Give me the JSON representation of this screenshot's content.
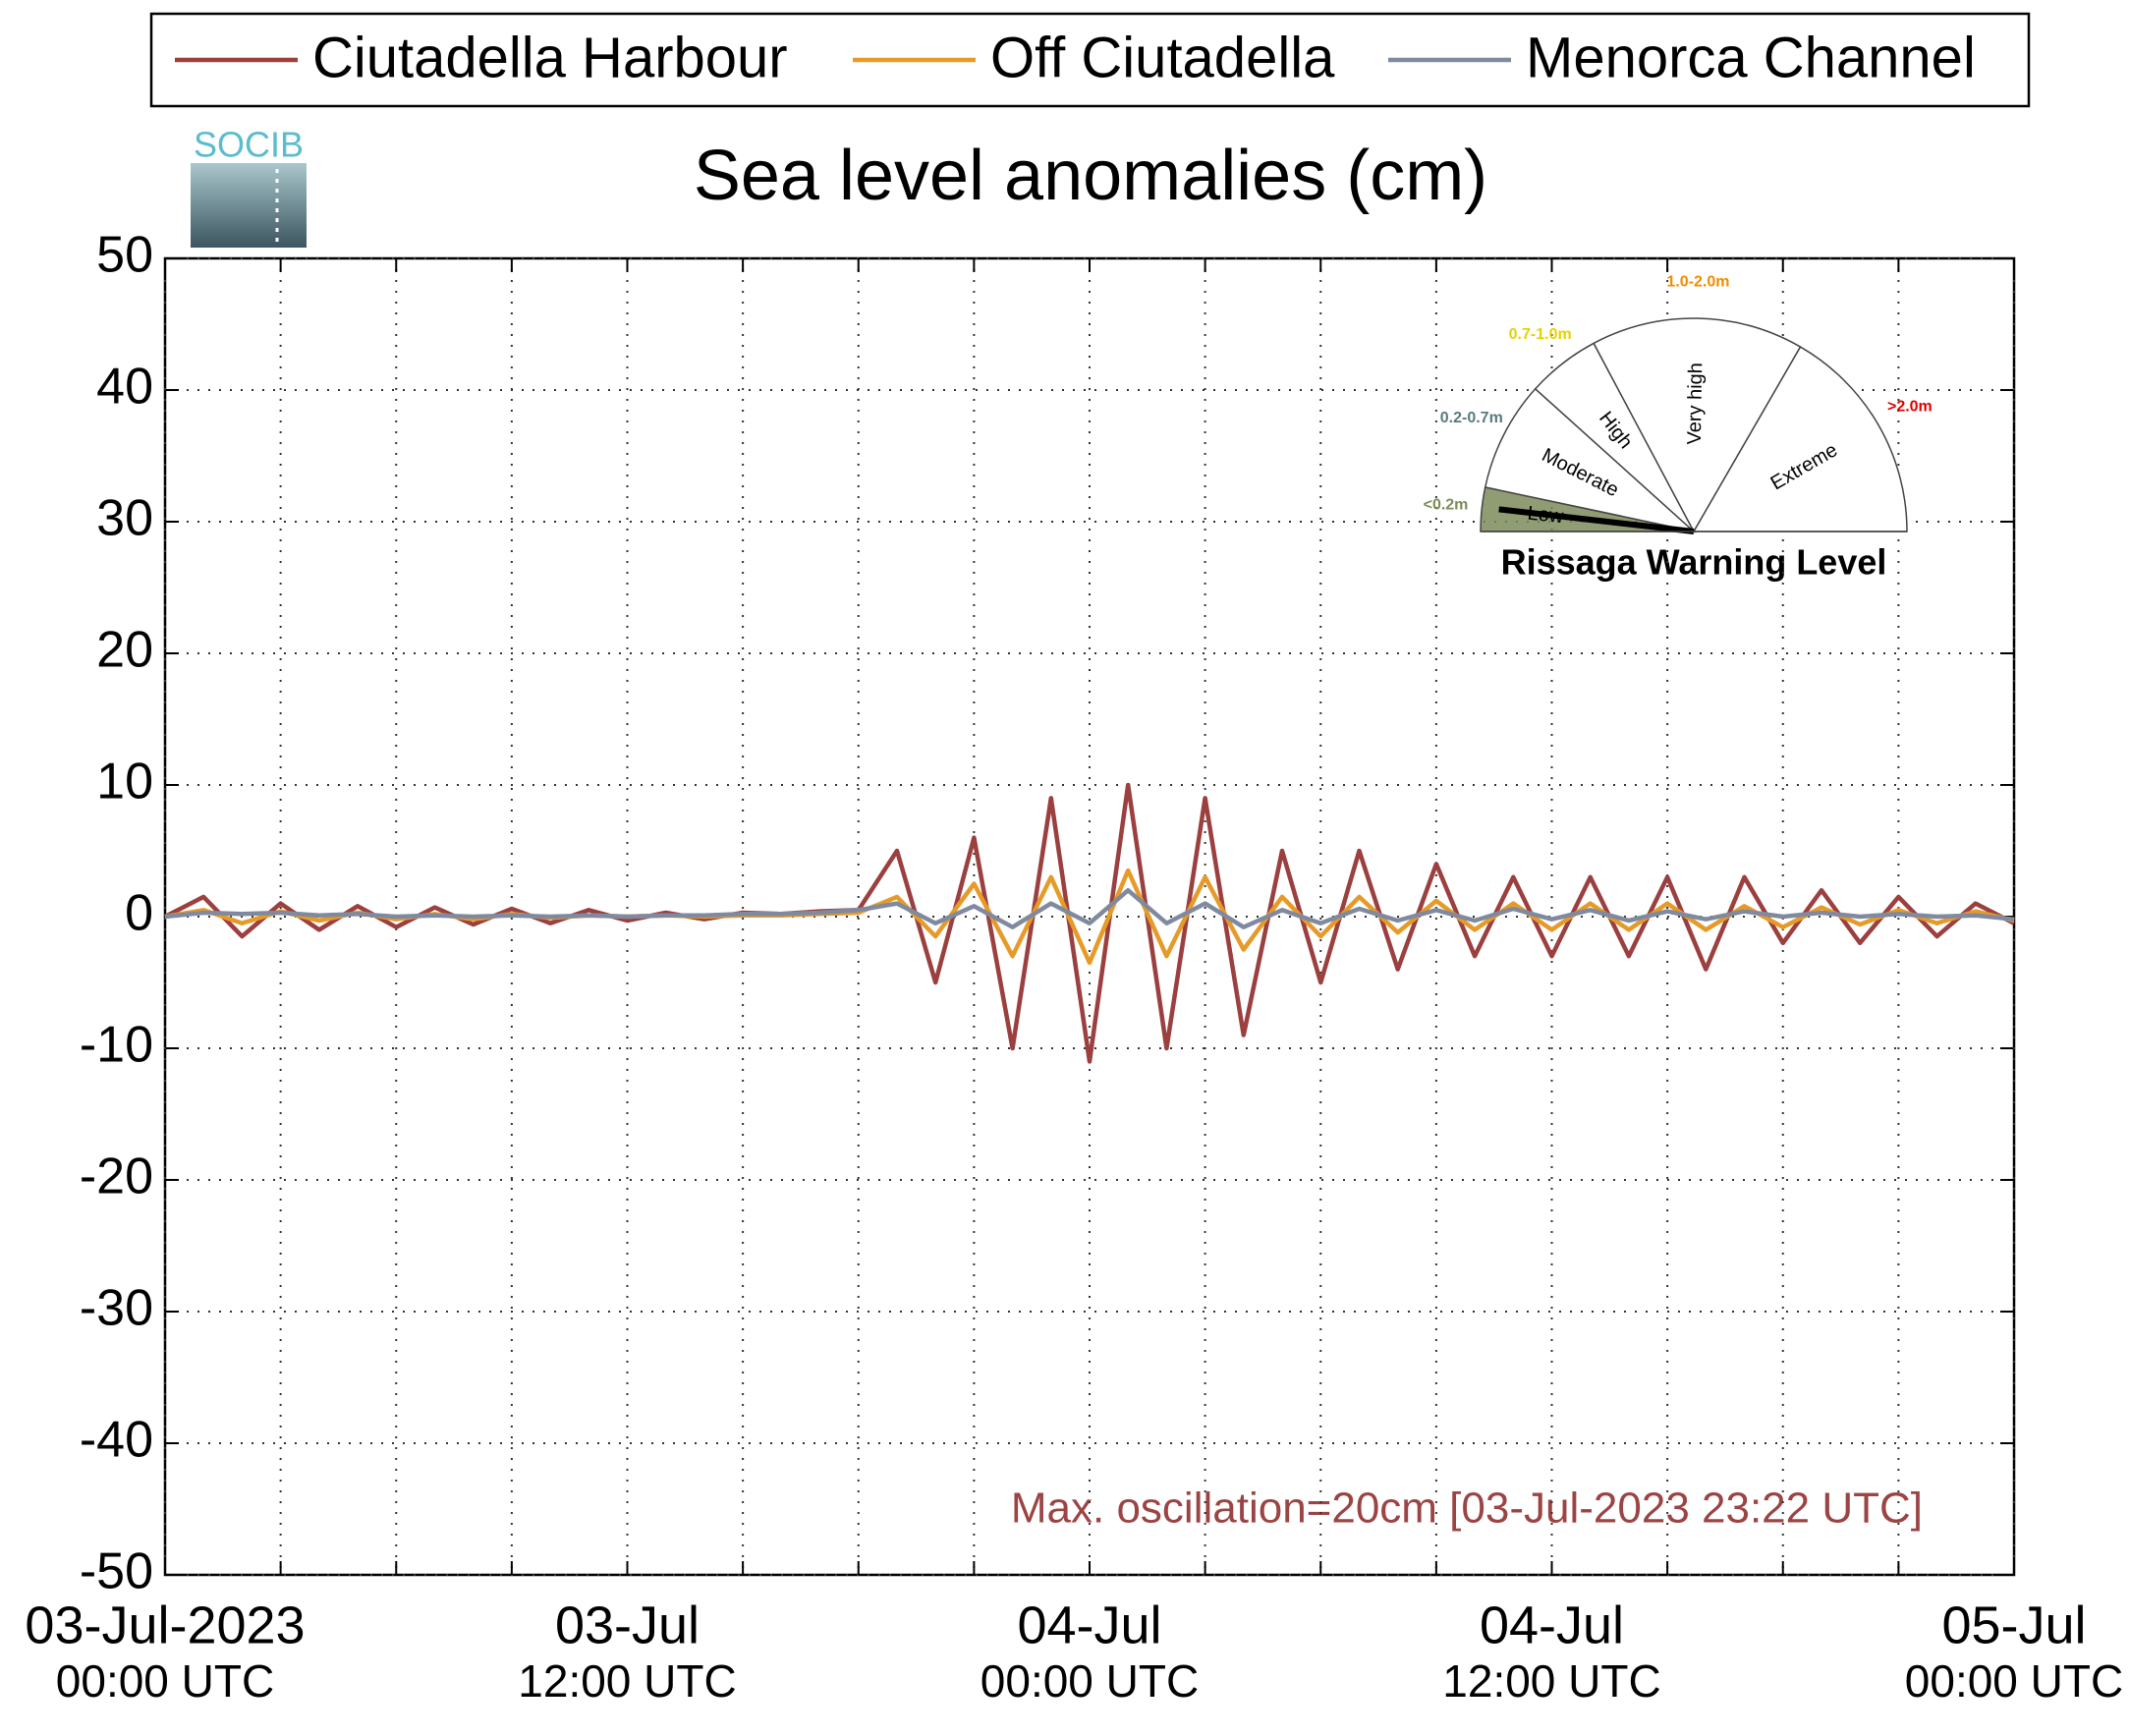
{
  "chart_data": {
    "type": "line",
    "title": "Sea level anomalies (cm)",
    "logo": "SOCIB",
    "annotation": "Max. oscillation=20cm [03-Jul-2023 23:22 UTC]",
    "legend": "top",
    "grid": true,
    "xlim": [
      "2023-07-03T00:00",
      "2023-07-05T00:00"
    ],
    "xticks": [
      {
        "value": "2023-07-03T00:00",
        "label": [
          "03-Jul-2023",
          "00:00 UTC"
        ]
      },
      {
        "value": "2023-07-03T03:00",
        "label": null
      },
      {
        "value": "2023-07-03T06:00",
        "label": null
      },
      {
        "value": "2023-07-03T09:00",
        "label": null
      },
      {
        "value": "2023-07-03T12:00",
        "label": [
          "03-Jul",
          "12:00 UTC"
        ]
      },
      {
        "value": "2023-07-03T15:00",
        "label": null
      },
      {
        "value": "2023-07-03T18:00",
        "label": null
      },
      {
        "value": "2023-07-03T21:00",
        "label": null
      },
      {
        "value": "2023-07-04T00:00",
        "label": [
          "04-Jul",
          "00:00 UTC"
        ]
      },
      {
        "value": "2023-07-04T03:00",
        "label": null
      },
      {
        "value": "2023-07-04T06:00",
        "label": null
      },
      {
        "value": "2023-07-04T09:00",
        "label": null
      },
      {
        "value": "2023-07-04T12:00",
        "label": [
          "04-Jul",
          "12:00 UTC"
        ]
      },
      {
        "value": "2023-07-04T15:00",
        "label": null
      },
      {
        "value": "2023-07-04T18:00",
        "label": null
      },
      {
        "value": "2023-07-04T21:00",
        "label": null
      },
      {
        "value": "2023-07-05T00:00",
        "label": [
          "05-Jul",
          "00:00 UTC"
        ]
      }
    ],
    "ylim": [
      -50,
      50
    ],
    "yticks": [
      50,
      40,
      30,
      20,
      10,
      0,
      -10,
      -20,
      -30,
      -40,
      -50
    ],
    "x": [
      "2023-07-03T00:00",
      "2023-07-03T01:00",
      "2023-07-03T02:00",
      "2023-07-03T03:00",
      "2023-07-03T04:00",
      "2023-07-03T05:00",
      "2023-07-03T06:00",
      "2023-07-03T07:00",
      "2023-07-03T08:00",
      "2023-07-03T09:00",
      "2023-07-03T10:00",
      "2023-07-03T11:00",
      "2023-07-03T12:00",
      "2023-07-03T13:00",
      "2023-07-03T14:00",
      "2023-07-03T15:00",
      "2023-07-03T16:00",
      "2023-07-03T17:00",
      "2023-07-03T18:00",
      "2023-07-03T19:00",
      "2023-07-03T20:00",
      "2023-07-03T21:00",
      "2023-07-03T22:00",
      "2023-07-03T23:00",
      "2023-07-04T00:00",
      "2023-07-04T01:00",
      "2023-07-04T02:00",
      "2023-07-04T03:00",
      "2023-07-04T04:00",
      "2023-07-04T05:00",
      "2023-07-04T06:00",
      "2023-07-04T07:00",
      "2023-07-04T08:00",
      "2023-07-04T09:00",
      "2023-07-04T10:00",
      "2023-07-04T11:00",
      "2023-07-04T12:00",
      "2023-07-04T13:00",
      "2023-07-04T14:00",
      "2023-07-04T15:00",
      "2023-07-04T16:00",
      "2023-07-04T17:00",
      "2023-07-04T18:00",
      "2023-07-04T19:00",
      "2023-07-04T20:00",
      "2023-07-04T21:00",
      "2023-07-04T22:00",
      "2023-07-04T23:00",
      "2023-07-05T00:00"
    ],
    "series": [
      {
        "name": "Ciutadella Harbour",
        "color": "#9b3f3f",
        "values": [
          0,
          1.5,
          -1.5,
          1,
          -1,
          0.8,
          -0.8,
          0.7,
          -0.6,
          0.6,
          -0.5,
          0.5,
          -0.3,
          0.3,
          -0.2,
          0.3,
          0.2,
          0.4,
          0.5,
          5,
          -5,
          6,
          -10,
          9,
          -11,
          10,
          -10,
          9,
          -9,
          5,
          -5,
          5,
          -4,
          4,
          -3,
          3,
          -3,
          3,
          -3,
          3,
          -4,
          3,
          -2,
          2,
          -2,
          1.5,
          -1.5,
          1,
          -0.5
        ]
      },
      {
        "name": "Off Ciutadella",
        "color": "#e69a28",
        "values": [
          0,
          0.5,
          -0.5,
          0.4,
          -0.3,
          0.3,
          -0.2,
          0.2,
          -0.2,
          0.2,
          -0.1,
          0.1,
          0,
          0.1,
          0,
          0.1,
          0.1,
          0.2,
          0.3,
          1.5,
          -1.5,
          2.5,
          -3,
          3,
          -3.5,
          3.5,
          -3,
          3,
          -2.5,
          1.5,
          -1.5,
          1.5,
          -1.2,
          1.2,
          -1,
          1,
          -1,
          1,
          -1,
          1,
          -1,
          0.8,
          -0.8,
          0.7,
          -0.6,
          0.5,
          -0.5,
          0.4,
          -0.3
        ]
      },
      {
        "name": "Menorca Channel",
        "color": "#7f8aa0",
        "values": [
          0,
          0.3,
          0.2,
          0.3,
          0.1,
          0.2,
          0,
          0.1,
          0,
          0.1,
          0,
          0.1,
          0,
          0.1,
          0.1,
          0.2,
          0.2,
          0.3,
          0.5,
          1,
          -0.5,
          0.8,
          -0.8,
          1,
          -0.5,
          2,
          -0.5,
          1,
          -0.8,
          0.5,
          -0.5,
          0.6,
          -0.3,
          0.5,
          -0.3,
          0.6,
          -0.2,
          0.5,
          -0.3,
          0.4,
          -0.2,
          0.4,
          0,
          0.3,
          0,
          0.2,
          0,
          0.1,
          -0.2
        ]
      }
    ],
    "inset": {
      "title": "Rissaga Warning Level",
      "current": "Low",
      "levels": [
        {
          "name": "Low",
          "range": "<0.2m",
          "color": "#7d8b5a"
        },
        {
          "name": "Moderate",
          "range": "0.2-0.7m",
          "color": "#5a7a80"
        },
        {
          "name": "High",
          "range": "0.7-1.0m",
          "color": "#e6d200"
        },
        {
          "name": "Very high",
          "range": "1.0-2.0m",
          "color": "#f08c00"
        },
        {
          "name": "Extreme",
          "range": ">2.0m",
          "color": "#e00000"
        }
      ]
    }
  }
}
